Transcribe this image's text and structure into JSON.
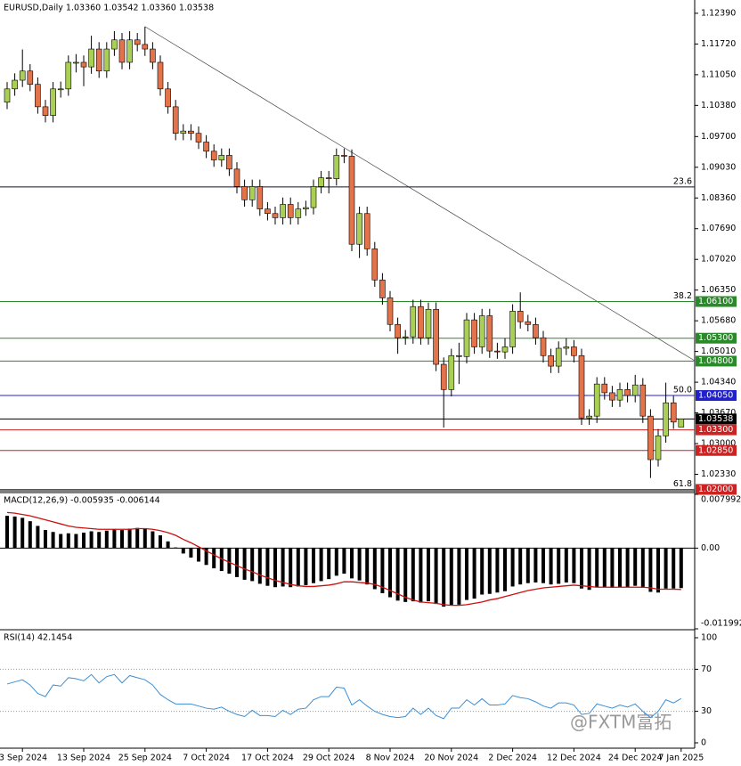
{
  "chart_data": [
    {
      "type": "candlestick",
      "title": "EURUSD,Daily 1.03360 1.03542 1.03360 1.03538",
      "up_color": "#a9cf54",
      "down_color": "#e2734b",
      "categories": [
        null,
        null,
        "3 Sep 2024",
        null,
        null,
        null,
        null,
        null,
        null,
        null,
        "13 Sep 2024",
        null,
        null,
        null,
        null,
        null,
        null,
        null,
        "25 Sep 2024",
        null,
        null,
        null,
        null,
        null,
        null,
        null,
        "7 Oct 2024",
        null,
        null,
        null,
        null,
        null,
        null,
        null,
        "17 Oct 2024",
        null,
        null,
        null,
        null,
        null,
        null,
        null,
        "29 Oct 2024",
        null,
        null,
        null,
        null,
        null,
        null,
        null,
        "8 Nov 2024",
        null,
        null,
        null,
        null,
        null,
        null,
        null,
        "20 Nov 2024",
        null,
        null,
        null,
        null,
        null,
        null,
        null,
        "2 Dec 2024",
        null,
        null,
        null,
        null,
        null,
        null,
        null,
        "12 Dec 2024",
        null,
        null,
        null,
        null,
        null,
        null,
        null,
        "24 Dec 2024",
        null,
        null,
        null,
        null,
        null,
        "7 Jan 2025"
      ],
      "ohlc": [
        [
          1.1045,
          1.1089,
          1.103,
          1.1074
        ],
        [
          1.1074,
          1.1108,
          1.1059,
          1.1093
        ],
        [
          1.1093,
          1.116,
          1.1078,
          1.1113
        ],
        [
          1.1113,
          1.1128,
          1.1069,
          1.1084
        ],
        [
          1.1084,
          1.1099,
          1.102,
          1.1035
        ],
        [
          1.1035,
          1.105,
          1.1001,
          1.1016
        ],
        [
          1.1016,
          1.1089,
          1.1001,
          1.1074
        ],
        [
          1.1074,
          1.109,
          1.1055,
          1.1074
        ],
        [
          1.1074,
          1.1147,
          1.1059,
          1.1132
        ],
        [
          1.1132,
          1.115,
          1.111,
          1.1132
        ],
        [
          1.1132,
          1.1147,
          1.108,
          1.1122
        ],
        [
          1.1122,
          1.119,
          1.1107,
          1.1161
        ],
        [
          1.1161,
          1.1176,
          1.1098,
          1.1113
        ],
        [
          1.1113,
          1.1176,
          1.1098,
          1.1161
        ],
        [
          1.1161,
          1.12,
          1.1146,
          1.1181
        ],
        [
          1.1181,
          1.1196,
          1.1117,
          1.1132
        ],
        [
          1.1132,
          1.12,
          1.1117,
          1.1181
        ],
        [
          1.1181,
          1.1196,
          1.1156,
          1.1171
        ],
        [
          1.1171,
          1.121,
          1.1146,
          1.1161
        ],
        [
          1.1161,
          1.1176,
          1.1117,
          1.1132
        ],
        [
          1.1132,
          1.1147,
          1.1059,
          1.1074
        ],
        [
          1.1074,
          1.1089,
          1.102,
          1.1035
        ],
        [
          1.1035,
          1.105,
          1.0962,
          1.0977
        ],
        [
          1.0977,
          1.0997,
          1.0962,
          1.0982
        ],
        [
          1.0982,
          1.0997,
          1.0962,
          1.0977
        ],
        [
          1.0977,
          1.0992,
          1.0943,
          1.0958
        ],
        [
          1.0958,
          1.0973,
          1.0923,
          1.0938
        ],
        [
          1.0938,
          1.0953,
          1.0904,
          1.0919
        ],
        [
          1.0919,
          1.0944,
          1.0904,
          1.0929
        ],
        [
          1.0929,
          1.0944,
          1.0884,
          1.0899
        ],
        [
          1.0899,
          1.0914,
          1.0846,
          1.0861
        ],
        [
          1.0861,
          1.0876,
          1.0817,
          1.0832
        ],
        [
          1.0832,
          1.0876,
          1.0817,
          1.0861
        ],
        [
          1.0861,
          1.0876,
          1.0797,
          1.0812
        ],
        [
          1.0812,
          1.0827,
          1.0787,
          1.0802
        ],
        [
          1.0802,
          1.0817,
          1.0778,
          1.0793
        ],
        [
          1.0793,
          1.0837,
          1.0778,
          1.0822
        ],
        [
          1.0822,
          1.0837,
          1.0778,
          1.0793
        ],
        [
          1.0793,
          1.0827,
          1.0778,
          1.0812
        ],
        [
          1.0812,
          1.083,
          1.0797,
          1.0815
        ],
        [
          1.0815,
          1.0876,
          1.08,
          1.0861
        ],
        [
          1.0861,
          1.0895,
          1.0846,
          1.088
        ],
        [
          1.088,
          1.0895,
          1.0846,
          1.0878
        ],
        [
          1.0878,
          1.0944,
          1.0863,
          1.0929
        ],
        [
          1.0929,
          1.0944,
          1.0912,
          1.0927
        ],
        [
          1.0927,
          1.0942,
          1.072,
          1.0735
        ],
        [
          1.0735,
          1.0817,
          1.0705,
          1.0802
        ],
        [
          1.0802,
          1.0817,
          1.071,
          1.0725
        ],
        [
          1.0725,
          1.074,
          1.0642,
          1.0657
        ],
        [
          1.0657,
          1.0672,
          1.0603,
          1.0618
        ],
        [
          1.0618,
          1.0633,
          1.0545,
          1.056
        ],
        [
          1.056,
          1.0575,
          1.0496,
          1.0531
        ],
        [
          1.0531,
          1.0548,
          1.0516,
          1.0533
        ],
        [
          1.0533,
          1.0614,
          1.0518,
          1.0599
        ],
        [
          1.0599,
          1.0614,
          1.0516,
          1.0531
        ],
        [
          1.0531,
          1.0608,
          1.0516,
          1.0593
        ],
        [
          1.0593,
          1.0608,
          1.0458,
          1.0473
        ],
        [
          1.0473,
          1.0488,
          1.0335,
          1.0418
        ],
        [
          1.0418,
          1.0507,
          1.0403,
          1.0492
        ],
        [
          1.0492,
          1.052,
          1.043,
          1.049
        ],
        [
          1.049,
          1.0585,
          1.0475,
          1.057
        ],
        [
          1.057,
          1.0585,
          1.0496,
          1.0511
        ],
        [
          1.0511,
          1.0594,
          1.0496,
          1.0579
        ],
        [
          1.0579,
          1.0594,
          1.0487,
          1.0502
        ],
        [
          1.0502,
          1.052,
          1.0485,
          1.05
        ],
        [
          1.05,
          1.053,
          1.0485,
          1.0511
        ],
        [
          1.0511,
          1.0604,
          1.0496,
          1.0589
        ],
        [
          1.0589,
          1.063,
          1.0551,
          1.0566
        ],
        [
          1.0566,
          1.0581,
          1.0545,
          1.056
        ],
        [
          1.056,
          1.0575,
          1.0516,
          1.0531
        ],
        [
          1.0531,
          1.0546,
          1.0477,
          1.0492
        ],
        [
          1.0492,
          1.0507,
          1.0454,
          1.0469
        ],
        [
          1.0469,
          1.0523,
          1.0454,
          1.0508
        ],
        [
          1.0508,
          1.053,
          1.0493,
          1.0511
        ],
        [
          1.0511,
          1.0526,
          1.0477,
          1.0492
        ],
        [
          1.0492,
          1.0507,
          1.0341,
          1.0356
        ],
        [
          1.0356,
          1.0375,
          1.0341,
          1.036
        ],
        [
          1.036,
          1.0445,
          1.0345,
          1.043
        ],
        [
          1.043,
          1.0445,
          1.0396,
          1.0411
        ],
        [
          1.0411,
          1.0426,
          1.038,
          1.0395
        ],
        [
          1.0395,
          1.0433,
          1.038,
          1.0418
        ],
        [
          1.0418,
          1.0433,
          1.039,
          1.0405
        ],
        [
          1.0405,
          1.045,
          1.039,
          1.0428
        ],
        [
          1.0428,
          1.0443,
          1.0345,
          1.036
        ],
        [
          1.036,
          1.0375,
          1.0225,
          1.0265
        ],
        [
          1.0265,
          1.0332,
          1.025,
          1.0317
        ],
        [
          1.0317,
          1.0433,
          1.0302,
          1.0389
        ],
        [
          1.0389,
          1.0404,
          1.0332,
          1.0347
        ],
        [
          1.0336,
          1.03542,
          1.0336,
          1.03538
        ]
      ],
      "ylim": [
        1.0199,
        1.1268
      ],
      "yticks": [
        {
          "value": 1.1239,
          "label": "1.12390"
        },
        {
          "value": 1.1172,
          "label": "1.11720"
        },
        {
          "value": 1.1105,
          "label": "1.11050"
        },
        {
          "value": 1.1038,
          "label": "1.10380"
        },
        {
          "value": 1.097,
          "label": "1.09700"
        },
        {
          "value": 1.0903,
          "label": "1.09030"
        },
        {
          "value": 1.0836,
          "label": "1.08360"
        },
        {
          "value": 1.0769,
          "label": "1.07690"
        },
        {
          "value": 1.0702,
          "label": "1.07020"
        },
        {
          "value": 1.0635,
          "label": "1.06350"
        },
        {
          "value": 1.0568,
          "label": "1.05680"
        },
        {
          "value": 1.0501,
          "label": "1.05010"
        },
        {
          "value": 1.0434,
          "label": "1.04340"
        },
        {
          "value": 1.0367,
          "label": "1.03670"
        },
        {
          "value": 1.03,
          "label": "1.03000"
        },
        {
          "value": 1.0233,
          "label": "1.02330"
        }
      ],
      "levels": [
        {
          "value": 1.086,
          "color": "#101030",
          "fib": "23.6"
        },
        {
          "value": 1.061,
          "label": "1.06100",
          "color": "#2a8a2a",
          "fib": "38.2"
        },
        {
          "value": 1.053,
          "label": "1.05300",
          "color": "#2a8a2a"
        },
        {
          "value": 1.048,
          "label": "1.04800",
          "color": "#2a8a2a"
        },
        {
          "value": 1.0405,
          "label": "1.04050",
          "color": "#2020cc",
          "fib": "50.0"
        },
        {
          "value": 1.03538,
          "color": "#000000",
          "box": true
        },
        {
          "value": 1.033,
          "label": "1.03300",
          "color": "#cc2222"
        },
        {
          "value": 1.0285,
          "label": "1.02850",
          "color": "#cc2222"
        },
        {
          "value": 1.02,
          "label": "1.02000",
          "color": "#cc2222",
          "fib": "61.8"
        }
      ],
      "watermark": "@FXTM富拓"
    },
    {
      "type": "macd",
      "title": "MACD(12,26,9) -0.005935 -0.006144",
      "ylim": [
        -0.011992,
        0.007992
      ],
      "yticks": [
        0.007992,
        {
          "value": 0,
          "label": "0.00"
        },
        -0.011992
      ],
      "series": [
        {
          "kind": "bar",
          "color": "#000000",
          "values": [
            0.0048,
            0.0047,
            0.0045,
            0.004,
            0.0033,
            0.0027,
            0.0024,
            0.0021,
            0.0022,
            0.0021,
            0.0023,
            0.0025,
            0.0024,
            0.0026,
            0.0028,
            0.0027,
            0.0029,
            0.003,
            0.0029,
            0.0025,
            0.0019,
            0.001,
            0.0001,
            -0.0008,
            -0.0014,
            -0.002,
            -0.0025,
            -0.003,
            -0.0034,
            -0.0038,
            -0.0043,
            -0.0047,
            -0.0049,
            -0.0053,
            -0.0056,
            -0.0058,
            -0.0057,
            -0.0058,
            -0.0057,
            -0.0055,
            -0.0052,
            -0.0049,
            -0.0046,
            -0.0041,
            -0.0038,
            -0.0045,
            -0.0048,
            -0.0054,
            -0.0061,
            -0.0067,
            -0.0073,
            -0.0078,
            -0.008,
            -0.0079,
            -0.0081,
            -0.0079,
            -0.0083,
            -0.0087,
            -0.0085,
            -0.0084,
            -0.0077,
            -0.0075,
            -0.0069,
            -0.0068,
            -0.0066,
            -0.0064,
            -0.0057,
            -0.0054,
            -0.0052,
            -0.0051,
            -0.0052,
            -0.0054,
            -0.0053,
            -0.0051,
            -0.0052,
            -0.006,
            -0.0062,
            -0.0058,
            -0.0058,
            -0.0059,
            -0.0058,
            -0.0058,
            -0.0056,
            -0.0059,
            -0.0065,
            -0.0066,
            -0.006,
            -0.006,
            -0.005935
          ]
        },
        {
          "kind": "line",
          "color": "#cc1111",
          "values": [
            0.0053,
            0.0052,
            0.005,
            0.0048,
            0.0045,
            0.0042,
            0.0039,
            0.0036,
            0.0033,
            0.0031,
            0.003,
            0.0029,
            0.0028,
            0.0028,
            0.0028,
            0.0028,
            0.0028,
            0.0029,
            0.0029,
            0.0028,
            0.0026,
            0.0023,
            0.0019,
            0.0013,
            0.0008,
            0.0002,
            -0.0004,
            -0.001,
            -0.0016,
            -0.0021,
            -0.0026,
            -0.0031,
            -0.0035,
            -0.004,
            -0.0044,
            -0.0048,
            -0.0051,
            -0.0054,
            -0.0056,
            -0.0057,
            -0.0057,
            -0.0056,
            -0.0055,
            -0.0053,
            -0.005,
            -0.005,
            -0.0051,
            -0.0052,
            -0.0054,
            -0.0058,
            -0.0063,
            -0.0068,
            -0.0073,
            -0.0077,
            -0.008,
            -0.0081,
            -0.0082,
            -0.0084,
            -0.0085,
            -0.0085,
            -0.0084,
            -0.0082,
            -0.008,
            -0.0077,
            -0.0075,
            -0.0072,
            -0.0069,
            -0.0066,
            -0.0063,
            -0.0061,
            -0.0059,
            -0.0058,
            -0.0057,
            -0.0056,
            -0.0055,
            -0.0056,
            -0.0057,
            -0.0058,
            -0.0058,
            -0.0058,
            -0.0058,
            -0.0058,
            -0.0058,
            -0.0058,
            -0.0059,
            -0.0061,
            -0.0061,
            -0.0061,
            -0.006144
          ]
        }
      ]
    },
    {
      "type": "line",
      "title": "RSI(14) 42.1454",
      "color": "#3a8fd6",
      "ylim": [
        0,
        100
      ],
      "yticks": [
        100,
        70,
        30,
        0
      ],
      "levels": [
        70,
        30
      ],
      "values": [
        56,
        58,
        60,
        55,
        47,
        44,
        55,
        54,
        62,
        61,
        59,
        65,
        57,
        63,
        65,
        57,
        64,
        62,
        60,
        55,
        46,
        41,
        37,
        37,
        37,
        35,
        33,
        32,
        34,
        30,
        27,
        25,
        31,
        26,
        26,
        25,
        31,
        27,
        32,
        33,
        41,
        44,
        44,
        53,
        52,
        36,
        41,
        35,
        30,
        27,
        25,
        24,
        25,
        33,
        27,
        33,
        26,
        23,
        33,
        33,
        41,
        36,
        42,
        36,
        36,
        37,
        45,
        43,
        42,
        39,
        35,
        33,
        38,
        38,
        36,
        27,
        28,
        37,
        35,
        33,
        36,
        34,
        37,
        30,
        24,
        30,
        41,
        38,
        42.1454
      ]
    }
  ]
}
